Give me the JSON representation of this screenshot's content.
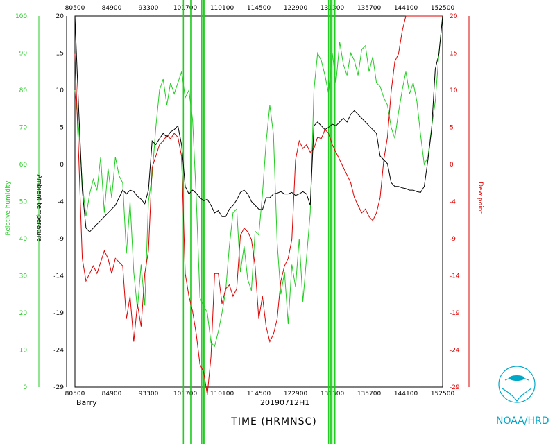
{
  "chart_data": {
    "type": "line",
    "x_ticks": [
      "80500",
      "84900",
      "93300",
      "101700",
      "110100",
      "114500",
      "122900",
      "131300",
      "135700",
      "144100",
      "152500"
    ],
    "x_title": "TIME (HRMNSC)",
    "storm_name": "Barry",
    "flight_id": "20190712H1",
    "logo_text": "NOAA/HRD",
    "left_axis_rh": {
      "label": "Relative humidity",
      "ticks": [
        "0.",
        "10.",
        "20.",
        "30.",
        "40.",
        "50.",
        "60.",
        "70.",
        "80.",
        "90.",
        "100."
      ],
      "range": [
        0,
        100
      ],
      "color": "#22cc22"
    },
    "left_axis_temp": {
      "label": "Ambient temperature",
      "ticks": [
        "-29",
        "-24",
        "-19",
        "-14",
        "-9",
        "-4",
        "0",
        "5",
        "10",
        "15",
        "20"
      ],
      "range": [
        -29,
        20
      ],
      "color": "#000000"
    },
    "right_axis_dew": {
      "label": "Dew point",
      "ticks": [
        "-29",
        "-24",
        "-19",
        "-14",
        "-9",
        "-4",
        "0",
        "5",
        "10",
        "15",
        "20"
      ],
      "range": [
        -29,
        20
      ],
      "color": "#dd0000"
    },
    "series": [
      {
        "name": "Relative humidity",
        "axis": "rh",
        "color": "#22cc22",
        "x": [
          0,
          0.01,
          0.02,
          0.03,
          0.04,
          0.05,
          0.06,
          0.07,
          0.08,
          0.09,
          0.1,
          0.11,
          0.12,
          0.13,
          0.14,
          0.15,
          0.16,
          0.17,
          0.18,
          0.19,
          0.2,
          0.21,
          0.22,
          0.23,
          0.24,
          0.25,
          0.26,
          0.27,
          0.28,
          0.29,
          0.3,
          0.31,
          0.32,
          0.33,
          0.34,
          0.35,
          0.36,
          0.37,
          0.38,
          0.39,
          0.4,
          0.41,
          0.42,
          0.43,
          0.44,
          0.45,
          0.46,
          0.47,
          0.48,
          0.49,
          0.5,
          0.51,
          0.52,
          0.53,
          0.54,
          0.55,
          0.56,
          0.57,
          0.58,
          0.59,
          0.6,
          0.61,
          0.62,
          0.63,
          0.64,
          0.65,
          0.66,
          0.67,
          0.68,
          0.69,
          0.7,
          0.71,
          0.72,
          0.73,
          0.74,
          0.75,
          0.76,
          0.77,
          0.78,
          0.79,
          0.8,
          0.81,
          0.82,
          0.83,
          0.84,
          0.85,
          0.86,
          0.87,
          0.88,
          0.89,
          0.9,
          0.91,
          0.92,
          0.93,
          0.94,
          0.95,
          0.96,
          0.97,
          0.98,
          0.99,
          1.0
        ],
        "y": [
          80,
          70,
          55,
          46,
          52,
          56,
          53,
          62,
          47,
          59,
          51,
          62,
          57,
          55,
          36,
          50,
          31,
          21,
          33,
          22,
          50,
          57,
          70,
          80,
          83,
          76,
          82,
          79,
          82,
          85,
          78,
          80,
          72,
          51,
          24,
          22,
          20,
          12,
          11,
          15,
          20,
          26,
          38,
          47,
          48,
          31,
          38,
          29,
          26,
          42,
          41,
          52,
          66,
          76,
          68,
          39,
          25,
          31,
          17,
          33,
          27,
          40,
          23,
          35,
          47,
          80,
          90,
          88,
          84,
          79,
          90,
          82,
          93,
          87,
          84,
          90,
          88,
          84,
          91,
          92,
          85,
          89,
          82,
          81,
          78,
          76,
          70,
          67,
          74,
          80,
          85,
          79,
          82,
          77,
          68,
          60,
          62,
          70,
          77,
          90,
          100
        ]
      },
      {
        "name": "Ambient temperature",
        "axis": "temp",
        "color": "#000000",
        "x": [
          0,
          0.01,
          0.02,
          0.03,
          0.04,
          0.05,
          0.06,
          0.07,
          0.08,
          0.09,
          0.1,
          0.11,
          0.12,
          0.13,
          0.14,
          0.15,
          0.16,
          0.17,
          0.18,
          0.19,
          0.2,
          0.21,
          0.22,
          0.23,
          0.24,
          0.25,
          0.26,
          0.27,
          0.28,
          0.29,
          0.3,
          0.31,
          0.32,
          0.33,
          0.34,
          0.35,
          0.36,
          0.37,
          0.38,
          0.39,
          0.4,
          0.41,
          0.42,
          0.43,
          0.44,
          0.45,
          0.46,
          0.47,
          0.48,
          0.49,
          0.5,
          0.51,
          0.52,
          0.53,
          0.54,
          0.55,
          0.56,
          0.57,
          0.58,
          0.59,
          0.6,
          0.61,
          0.62,
          0.63,
          0.64,
          0.65,
          0.66,
          0.67,
          0.68,
          0.69,
          0.7,
          0.71,
          0.72,
          0.73,
          0.74,
          0.75,
          0.76,
          0.77,
          0.78,
          0.79,
          0.8,
          0.81,
          0.82,
          0.83,
          0.84,
          0.85,
          0.86,
          0.87,
          0.88,
          0.89,
          0.9,
          0.91,
          0.92,
          0.93,
          0.94,
          0.95,
          0.96,
          0.97,
          0.98,
          0.99,
          1.0
        ],
        "y": [
          20,
          8,
          -3,
          -8,
          -8.5,
          -8,
          -7.5,
          -7,
          -6.5,
          -6,
          -5.5,
          -5,
          -4,
          -3,
          -3.5,
          -3,
          -3.2,
          -3.8,
          -4.2,
          -4.8,
          -3,
          3.5,
          3,
          3.8,
          4.5,
          4,
          4.7,
          5,
          5.5,
          3,
          -2.5,
          -3.5,
          -3,
          -3.4,
          -4,
          -4.4,
          -4.2,
          -5,
          -6,
          -5.7,
          -6.5,
          -6.5,
          -5.5,
          -5,
          -4.3,
          -3.3,
          -3,
          -3.5,
          -4.5,
          -5,
          -5.5,
          -5.6,
          -4,
          -4,
          -3.5,
          -3.4,
          -3.2,
          -3.5,
          -3.5,
          -3.3,
          -3.7,
          -3.5,
          -3.2,
          -3.5,
          -5,
          5.5,
          6,
          5.5,
          5,
          5.3,
          5.7,
          5.5,
          6,
          6.5,
          6,
          7,
          7.5,
          7,
          6.5,
          6,
          5.5,
          5,
          4.5,
          1.5,
          1,
          0.5,
          -2,
          -2.5,
          -2.5,
          -2.7,
          -2.8,
          -3,
          -3,
          -3.2,
          -3.3,
          -2.5,
          1,
          5,
          13,
          15,
          20
        ]
      },
      {
        "name": "Dew point",
        "axis": "temp",
        "color": "#dd0000",
        "x": [
          0,
          0.01,
          0.02,
          0.03,
          0.04,
          0.05,
          0.06,
          0.07,
          0.08,
          0.09,
          0.1,
          0.11,
          0.12,
          0.13,
          0.14,
          0.15,
          0.16,
          0.17,
          0.18,
          0.19,
          0.2,
          0.21,
          0.22,
          0.23,
          0.24,
          0.25,
          0.26,
          0.27,
          0.28,
          0.29,
          0.3,
          0.31,
          0.32,
          0.33,
          0.34,
          0.35,
          0.36,
          0.37,
          0.38,
          0.39,
          0.4,
          0.41,
          0.42,
          0.43,
          0.44,
          0.45,
          0.46,
          0.47,
          0.48,
          0.49,
          0.5,
          0.51,
          0.52,
          0.53,
          0.54,
          0.55,
          0.56,
          0.57,
          0.58,
          0.59,
          0.6,
          0.61,
          0.62,
          0.63,
          0.64,
          0.65,
          0.66,
          0.67,
          0.68,
          0.69,
          0.7,
          0.71,
          0.72,
          0.73,
          0.74,
          0.75,
          0.76,
          0.77,
          0.78,
          0.79,
          0.8,
          0.81,
          0.82,
          0.83,
          0.84,
          0.85,
          0.86,
          0.87,
          0.88,
          0.89,
          0.9,
          0.91,
          0.92,
          0.93,
          0.94,
          0.95,
          0.96,
          0.97,
          0.98,
          0.99,
          1.0
        ],
        "y": [
          15,
          2,
          -12,
          -15,
          -14,
          -13,
          -14,
          -12.5,
          -11,
          -12,
          -14,
          -12,
          -12.5,
          -13,
          -20,
          -17,
          -23,
          -18,
          -21,
          -14,
          -11,
          0,
          1.5,
          3,
          3.5,
          4.2,
          3.8,
          4.5,
          4,
          1.5,
          -14,
          -17,
          -19,
          -22,
          -26,
          -27,
          -30,
          -25,
          -14,
          -14,
          -18,
          -16,
          -15.5,
          -17,
          -16,
          -9,
          -8,
          -8.5,
          -9.5,
          -13,
          -20,
          -17,
          -21,
          -23,
          -22,
          -20,
          -15,
          -13,
          -12,
          -9.5,
          1,
          3.5,
          2.5,
          3,
          2,
          2.5,
          4,
          3.8,
          5,
          4.5,
          3,
          2,
          1,
          0,
          -1,
          -2,
          -4,
          -5,
          -6,
          -5.5,
          -6.5,
          -7,
          -6,
          -4,
          1,
          4,
          10,
          14,
          15,
          18,
          20,
          20,
          20,
          20,
          20,
          20,
          20,
          20,
          20,
          20,
          20
        ]
      }
    ],
    "vertical_spikes": {
      "color": "#22cc22",
      "x_positions": [
        0.295,
        0.315,
        0.317,
        0.345,
        0.35,
        0.353,
        0.69,
        0.696,
        0.699,
        0.705,
        0.707
      ],
      "note_visible": ""
    }
  }
}
